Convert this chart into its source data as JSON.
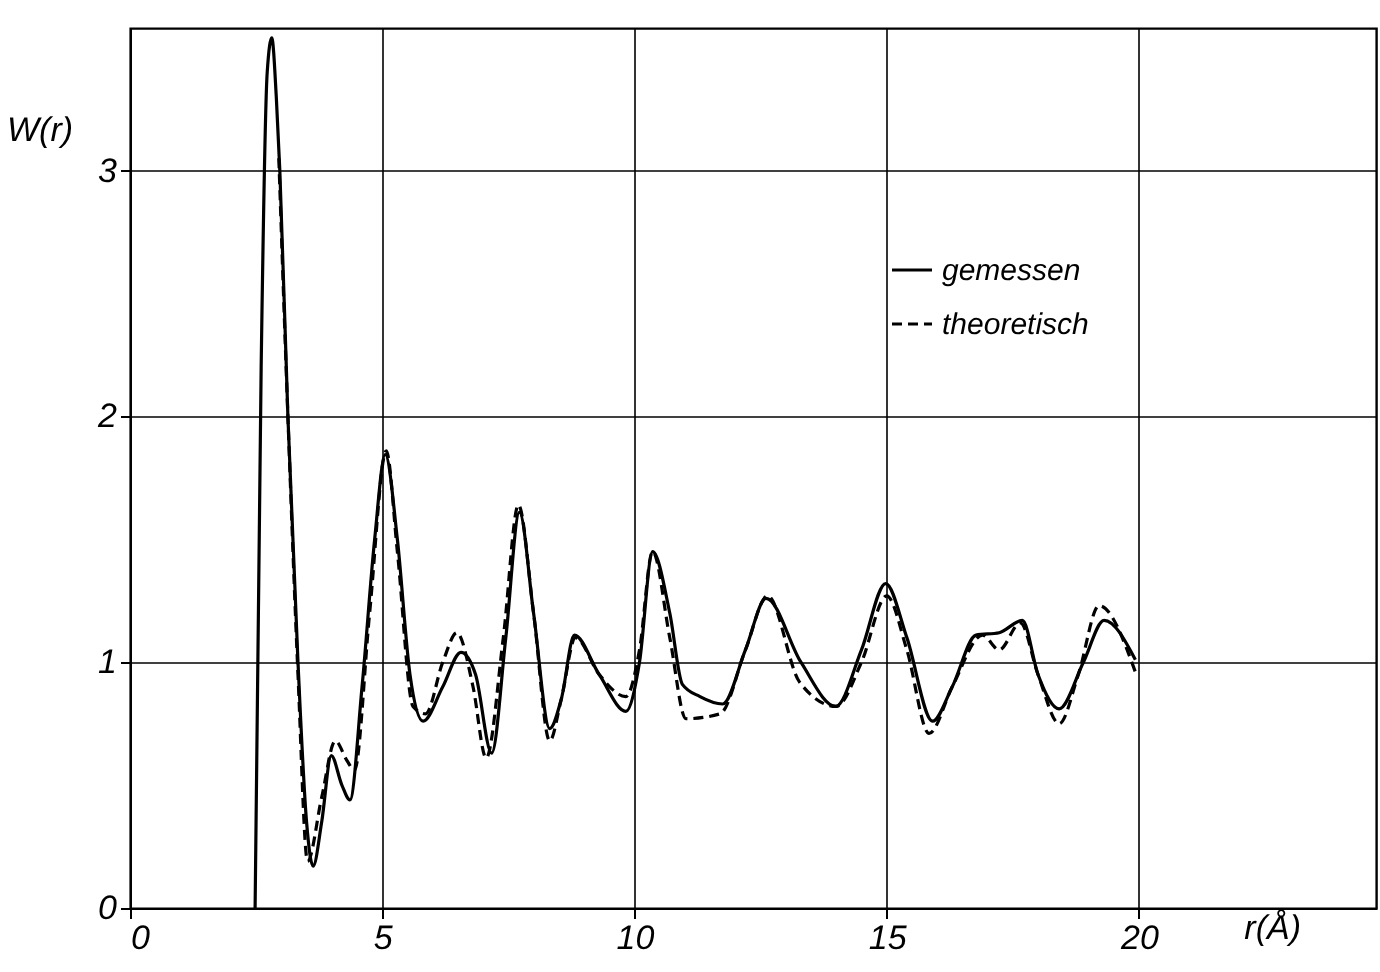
{
  "chart_data": {
    "type": "line",
    "xlabel": "r(Å)",
    "ylabel": "W(r)",
    "xlim": [
      0,
      24.7
    ],
    "ylim": [
      0,
      3.58
    ],
    "xticks": [
      0,
      5,
      10,
      15,
      20
    ],
    "yticks": [
      0,
      1,
      2,
      3
    ],
    "grid": true,
    "legend": "top right",
    "series": [
      {
        "name": "gemessen",
        "color": "#000000",
        "line_style": "solid",
        "x": [
          2.48,
          2.6,
          2.72,
          2.81,
          2.9,
          2.97,
          3.13,
          3.33,
          3.5,
          3.63,
          3.8,
          3.99,
          4.2,
          4.36,
          4.6,
          4.85,
          5.06,
          5.3,
          5.55,
          5.81,
          6.2,
          6.56,
          6.85,
          7.17,
          7.45,
          7.72,
          8.0,
          8.32,
          8.55,
          8.81,
          9.3,
          9.83,
          10.1,
          10.36,
          10.7,
          10.95,
          11.3,
          11.75,
          12.2,
          12.61,
          13.3,
          13.99,
          14.5,
          14.98,
          15.4,
          15.91,
          16.3,
          16.77,
          17.23,
          17.69,
          18.0,
          18.42,
          18.9,
          19.31,
          19.93
        ],
        "values": [
          0,
          2.2,
          3.4,
          3.54,
          3.3,
          3.0,
          2.0,
          1.0,
          0.35,
          0.17,
          0.35,
          0.62,
          0.5,
          0.44,
          0.9,
          1.5,
          1.845,
          1.5,
          0.95,
          0.76,
          0.9,
          1.04,
          0.95,
          0.63,
          1.1,
          1.61,
          1.2,
          0.73,
          0.85,
          1.11,
          0.95,
          0.8,
          1.0,
          1.45,
          1.2,
          0.91,
          0.86,
          0.83,
          1.05,
          1.26,
          1.0,
          0.82,
          1.05,
          1.32,
          1.1,
          0.76,
          0.9,
          1.11,
          1.12,
          1.17,
          0.95,
          0.81,
          1.0,
          1.17,
          1.01
        ]
      },
      {
        "name": "theoretisch",
        "color": "#000000",
        "line_style": "dashed",
        "x": [
          2.95,
          3.13,
          3.33,
          3.52,
          3.8,
          4.07,
          4.3,
          4.45,
          4.75,
          5.08,
          5.3,
          5.61,
          5.86,
          6.2,
          6.48,
          6.8,
          7.06,
          7.4,
          7.7,
          8.0,
          8.32,
          8.55,
          8.83,
          9.3,
          9.83,
          10.1,
          10.36,
          10.7,
          11.02,
          11.7,
          12.2,
          12.64,
          13.27,
          14.0,
          14.5,
          15.0,
          15.4,
          15.84,
          16.3,
          16.9,
          17.23,
          17.65,
          18.0,
          18.42,
          18.8,
          19.21,
          19.93
        ],
        "values": [
          3.05,
          2.0,
          0.95,
          0.19,
          0.45,
          0.68,
          0.6,
          0.56,
          1.2,
          1.86,
          1.45,
          0.82,
          0.79,
          1.0,
          1.12,
          0.9,
          0.61,
          1.1,
          1.64,
          1.2,
          0.68,
          0.85,
          1.1,
          0.95,
          0.86,
          1.05,
          1.45,
          1.1,
          0.77,
          0.79,
          1.05,
          1.27,
          0.92,
          0.82,
          1.0,
          1.27,
          1.05,
          0.71,
          0.9,
          1.11,
          1.05,
          1.16,
          0.95,
          0.75,
          0.95,
          1.23,
          0.96
        ]
      }
    ]
  }
}
